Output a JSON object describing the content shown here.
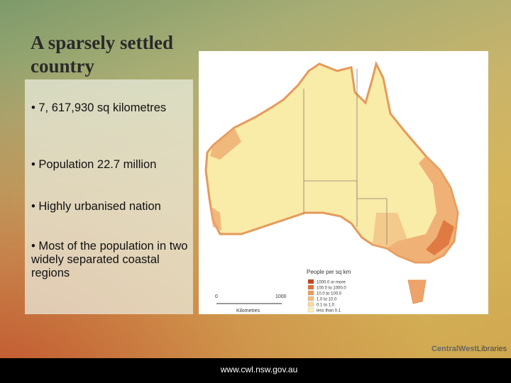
{
  "slide": {
    "title": "A sparsely settled country",
    "bullets": [
      "• 7, 617,930 sq kilometres",
      "• Population 22.7 million",
      "• Highly urbanised nation",
      "• Most of the population in two widely separated coastal regions"
    ],
    "map": {
      "legend_title": "People per sq km",
      "legend_items": [
        "1000.0 or more",
        "100.0 to 1000.0",
        "10.0 to 100.0",
        "1.0 to 10.0",
        "0.1 to 1.0",
        "less than 0.1"
      ],
      "scale_start": "0",
      "scale_end": "1000",
      "scale_unit": "Kilometres"
    },
    "logo": {
      "part1": "CentralWest",
      "part2": "Libraries"
    },
    "footer": "www.cwl.nsw.gov.au"
  }
}
